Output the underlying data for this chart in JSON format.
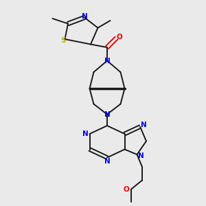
{
  "background_color": "#eaeaea",
  "bond_color": "#1a1a1a",
  "N_color": "#0000ee",
  "S_color": "#bbbb00",
  "O_color": "#ee0000",
  "figsize": [
    3.0,
    3.0
  ],
  "dpi": 100,
  "xlim": [
    0,
    10
  ],
  "ylim": [
    0,
    10
  ]
}
